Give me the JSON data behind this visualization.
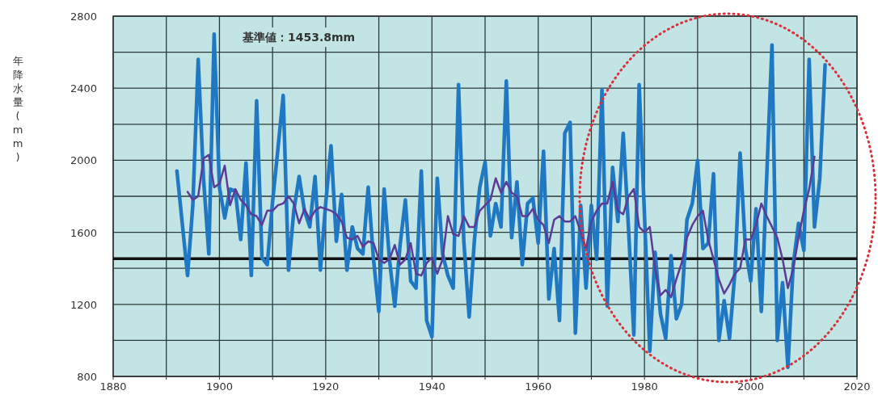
{
  "chart_data": {
    "type": "line",
    "ylabel": "年降水量(mm)",
    "xlim": [
      1880,
      2020
    ],
    "ylim": [
      800,
      2800
    ],
    "xticks": [
      1880,
      {
        "value": 1890,
        "label": null
      },
      1900,
      {
        "value": 1910,
        "label": null
      },
      1920,
      {
        "value": 1930,
        "label": null
      },
      1940,
      {
        "value": 1950,
        "label": null
      },
      1960,
      {
        "value": 1970,
        "label": null
      },
      1980,
      {
        "value": 1990,
        "label": null
      },
      2000,
      {
        "value": 2010,
        "label": null
      },
      2020
    ],
    "yticks": [
      800,
      {
        "value": 1000,
        "label": null
      },
      1200,
      {
        "value": 1400,
        "label": null
      },
      1600,
      {
        "value": 1800,
        "label": null
      },
      2000,
      {
        "value": 2200,
        "label": null
      },
      2400,
      {
        "value": 2600,
        "label": null
      },
      2800
    ],
    "grid": true,
    "ref_lines": [
      {
        "axis": "y",
        "value": 1453.8,
        "label": "基準値：1453.8mm",
        "color": "#111111"
      }
    ],
    "series": [
      {
        "color": "#1f78c1",
        "x": [
          1892,
          1893,
          1894,
          1895,
          1896,
          1897,
          1898,
          1899,
          1900,
          1901,
          1902,
          1903,
          1904,
          1905,
          1906,
          1907,
          1908,
          1909,
          1910,
          1911,
          1912,
          1913,
          1914,
          1915,
          1916,
          1917,
          1918,
          1919,
          1920,
          1921,
          1922,
          1923,
          1924,
          1925,
          1926,
          1927,
          1928,
          1929,
          1930,
          1931,
          1932,
          1933,
          1934,
          1935,
          1936,
          1937,
          1938,
          1939,
          1940,
          1941,
          1942,
          1943,
          1944,
          1945,
          1946,
          1947,
          1948,
          1949,
          1950,
          1951,
          1952,
          1953,
          1954,
          1955,
          1956,
          1957,
          1958,
          1959,
          1960,
          1961,
          1962,
          1963,
          1964,
          1965,
          1966,
          1967,
          1968,
          1969,
          1970,
          1971,
          1972,
          1973,
          1974,
          1975,
          1976,
          1977,
          1978,
          1979,
          1980,
          1981,
          1982,
          1983,
          1984,
          1985,
          1986,
          1987,
          1988,
          1989,
          1990,
          1991,
          1992,
          1993,
          1994,
          1995,
          1996,
          1997,
          1998,
          1999,
          2000,
          2001,
          2002,
          2003,
          2004,
          2005,
          2006,
          2007,
          2008,
          2009,
          2010,
          2011,
          2012,
          2013,
          2014
        ],
        "values": [
          1940,
          1650,
          1360,
          1755,
          2560,
          1900,
          1480,
          2700,
          1850,
          1680,
          1840,
          1830,
          1560,
          1985,
          1360,
          2330,
          1460,
          1420,
          1770,
          2060,
          2360,
          1390,
          1720,
          1910,
          1720,
          1630,
          1910,
          1390,
          1760,
          2080,
          1550,
          1810,
          1390,
          1630,
          1510,
          1480,
          1850,
          1450,
          1160,
          1840,
          1450,
          1190,
          1530,
          1780,
          1330,
          1290,
          1940,
          1110,
          1020,
          1900,
          1480,
          1360,
          1290,
          2420,
          1550,
          1130,
          1560,
          1850,
          1990,
          1580,
          1760,
          1630,
          2440,
          1570,
          1880,
          1420,
          1760,
          1790,
          1540,
          2050,
          1230,
          1510,
          1110,
          2150,
          2210,
          1040,
          1750,
          1290,
          1750,
          1450,
          2390,
          1190,
          1960,
          1660,
          2150,
          1620,
          1030,
          2420,
          1700,
          940,
          1490,
          1150,
          1010,
          1470,
          1120,
          1200,
          1670,
          1760,
          2000,
          1510,
          1540,
          1925,
          1000,
          1220,
          1010,
          1370,
          2040,
          1510,
          1330,
          1730,
          1160,
          1900,
          2640,
          1000,
          1320,
          850,
          1420,
          1650,
          1500,
          2560,
          1630,
          1900,
          2530
        ]
      },
      {
        "color": "#5a3c96",
        "x": [
          1894,
          1895,
          1896,
          1897,
          1898,
          1899,
          1900,
          1901,
          1902,
          1903,
          1904,
          1905,
          1906,
          1907,
          1908,
          1909,
          1910,
          1911,
          1912,
          1913,
          1914,
          1915,
          1916,
          1917,
          1918,
          1919,
          1920,
          1921,
          1922,
          1923,
          1924,
          1925,
          1926,
          1927,
          1928,
          1929,
          1930,
          1931,
          1932,
          1933,
          1934,
          1935,
          1936,
          1937,
          1938,
          1939,
          1940,
          1941,
          1942,
          1943,
          1944,
          1945,
          1946,
          1947,
          1948,
          1949,
          1950,
          1951,
          1952,
          1953,
          1954,
          1955,
          1956,
          1957,
          1958,
          1959,
          1960,
          1961,
          1962,
          1963,
          1964,
          1965,
          1966,
          1967,
          1968,
          1969,
          1970,
          1971,
          1972,
          1973,
          1974,
          1975,
          1976,
          1977,
          1978,
          1979,
          1980,
          1981,
          1982,
          1983,
          1984,
          1985,
          1986,
          1987,
          1988,
          1989,
          1990,
          1991,
          1992,
          1993,
          1994,
          1995,
          1996,
          1997,
          1998,
          1999,
          2000,
          2001,
          2002,
          2003,
          2004,
          2005,
          2006,
          2007,
          2008,
          2009,
          2010,
          2011,
          2012
        ],
        "values": [
          1825,
          1780,
          1800,
          2010,
          2030,
          1850,
          1870,
          1970,
          1750,
          1840,
          1780,
          1750,
          1700,
          1690,
          1640,
          1720,
          1720,
          1750,
          1760,
          1800,
          1760,
          1650,
          1730,
          1670,
          1720,
          1740,
          1730,
          1720,
          1700,
          1660,
          1570,
          1560,
          1580,
          1520,
          1550,
          1540,
          1450,
          1430,
          1450,
          1530,
          1420,
          1450,
          1540,
          1370,
          1360,
          1430,
          1460,
          1370,
          1450,
          1690,
          1590,
          1580,
          1690,
          1630,
          1630,
          1720,
          1750,
          1780,
          1900,
          1820,
          1880,
          1820,
          1800,
          1690,
          1690,
          1730,
          1670,
          1640,
          1540,
          1670,
          1690,
          1660,
          1660,
          1690,
          1600,
          1510,
          1660,
          1720,
          1760,
          1760,
          1880,
          1720,
          1700,
          1800,
          1840,
          1630,
          1600,
          1630,
          1400,
          1250,
          1280,
          1240,
          1340,
          1430,
          1570,
          1640,
          1690,
          1720,
          1560,
          1450,
          1340,
          1260,
          1310,
          1370,
          1400,
          1560,
          1560,
          1640,
          1760,
          1690,
          1630,
          1570,
          1450,
          1290,
          1400,
          1570,
          1720,
          1840,
          2020
        ]
      }
    ]
  }
}
